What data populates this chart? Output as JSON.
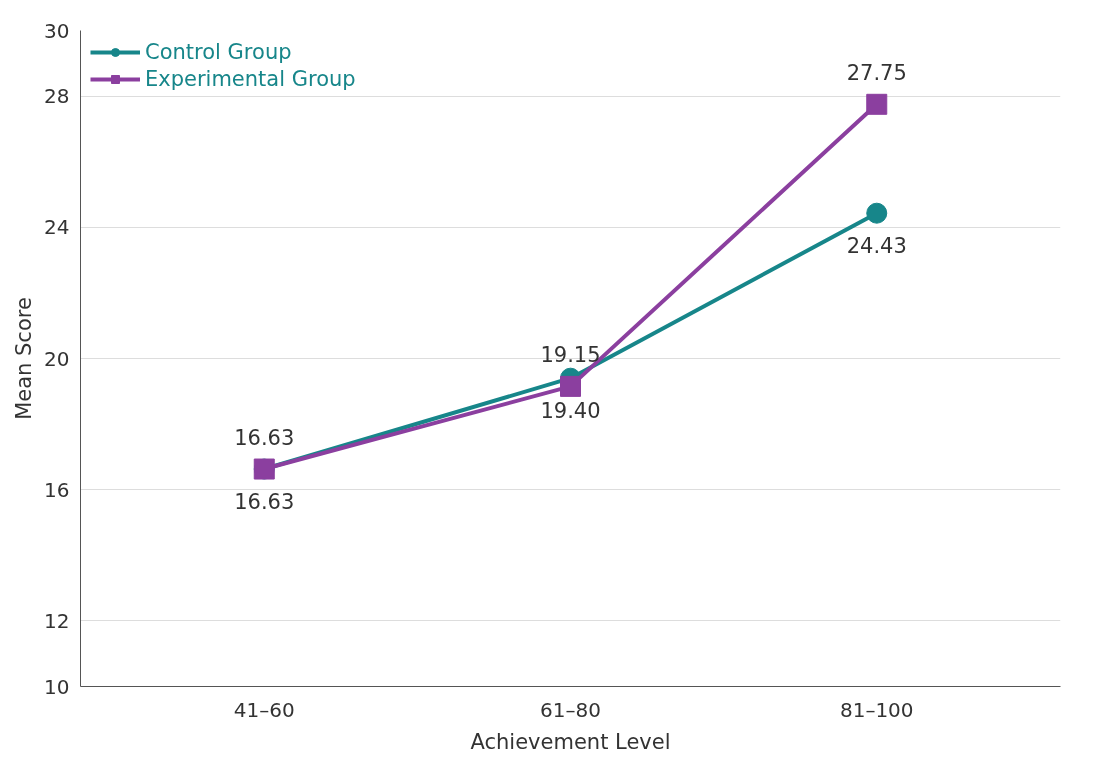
{
  "chart_data": {
    "type": "line",
    "xlabel": "Achievement Level",
    "ylabel": "Mean Score",
    "categories": [
      "41–60",
      "61–80",
      "81–100"
    ],
    "series": [
      {
        "name": "Control Group",
        "color": "#17868a",
        "marker": "circle",
        "values": [
          16.63,
          19.4,
          24.43
        ],
        "value_labels": [
          "16.63",
          "19.40",
          "24.43"
        ]
      },
      {
        "name": "Experimental Group",
        "color": "#8b3f9f",
        "marker": "square",
        "values": [
          16.63,
          19.15,
          27.75
        ],
        "value_labels": [
          "16.63",
          "19.15",
          "27.75"
        ]
      }
    ],
    "ylim": [
      10,
      30
    ],
    "yticks": [
      10,
      12,
      16,
      20,
      24,
      28,
      30
    ],
    "grid": "y",
    "legend": "top left",
    "line_style": "solid"
  }
}
